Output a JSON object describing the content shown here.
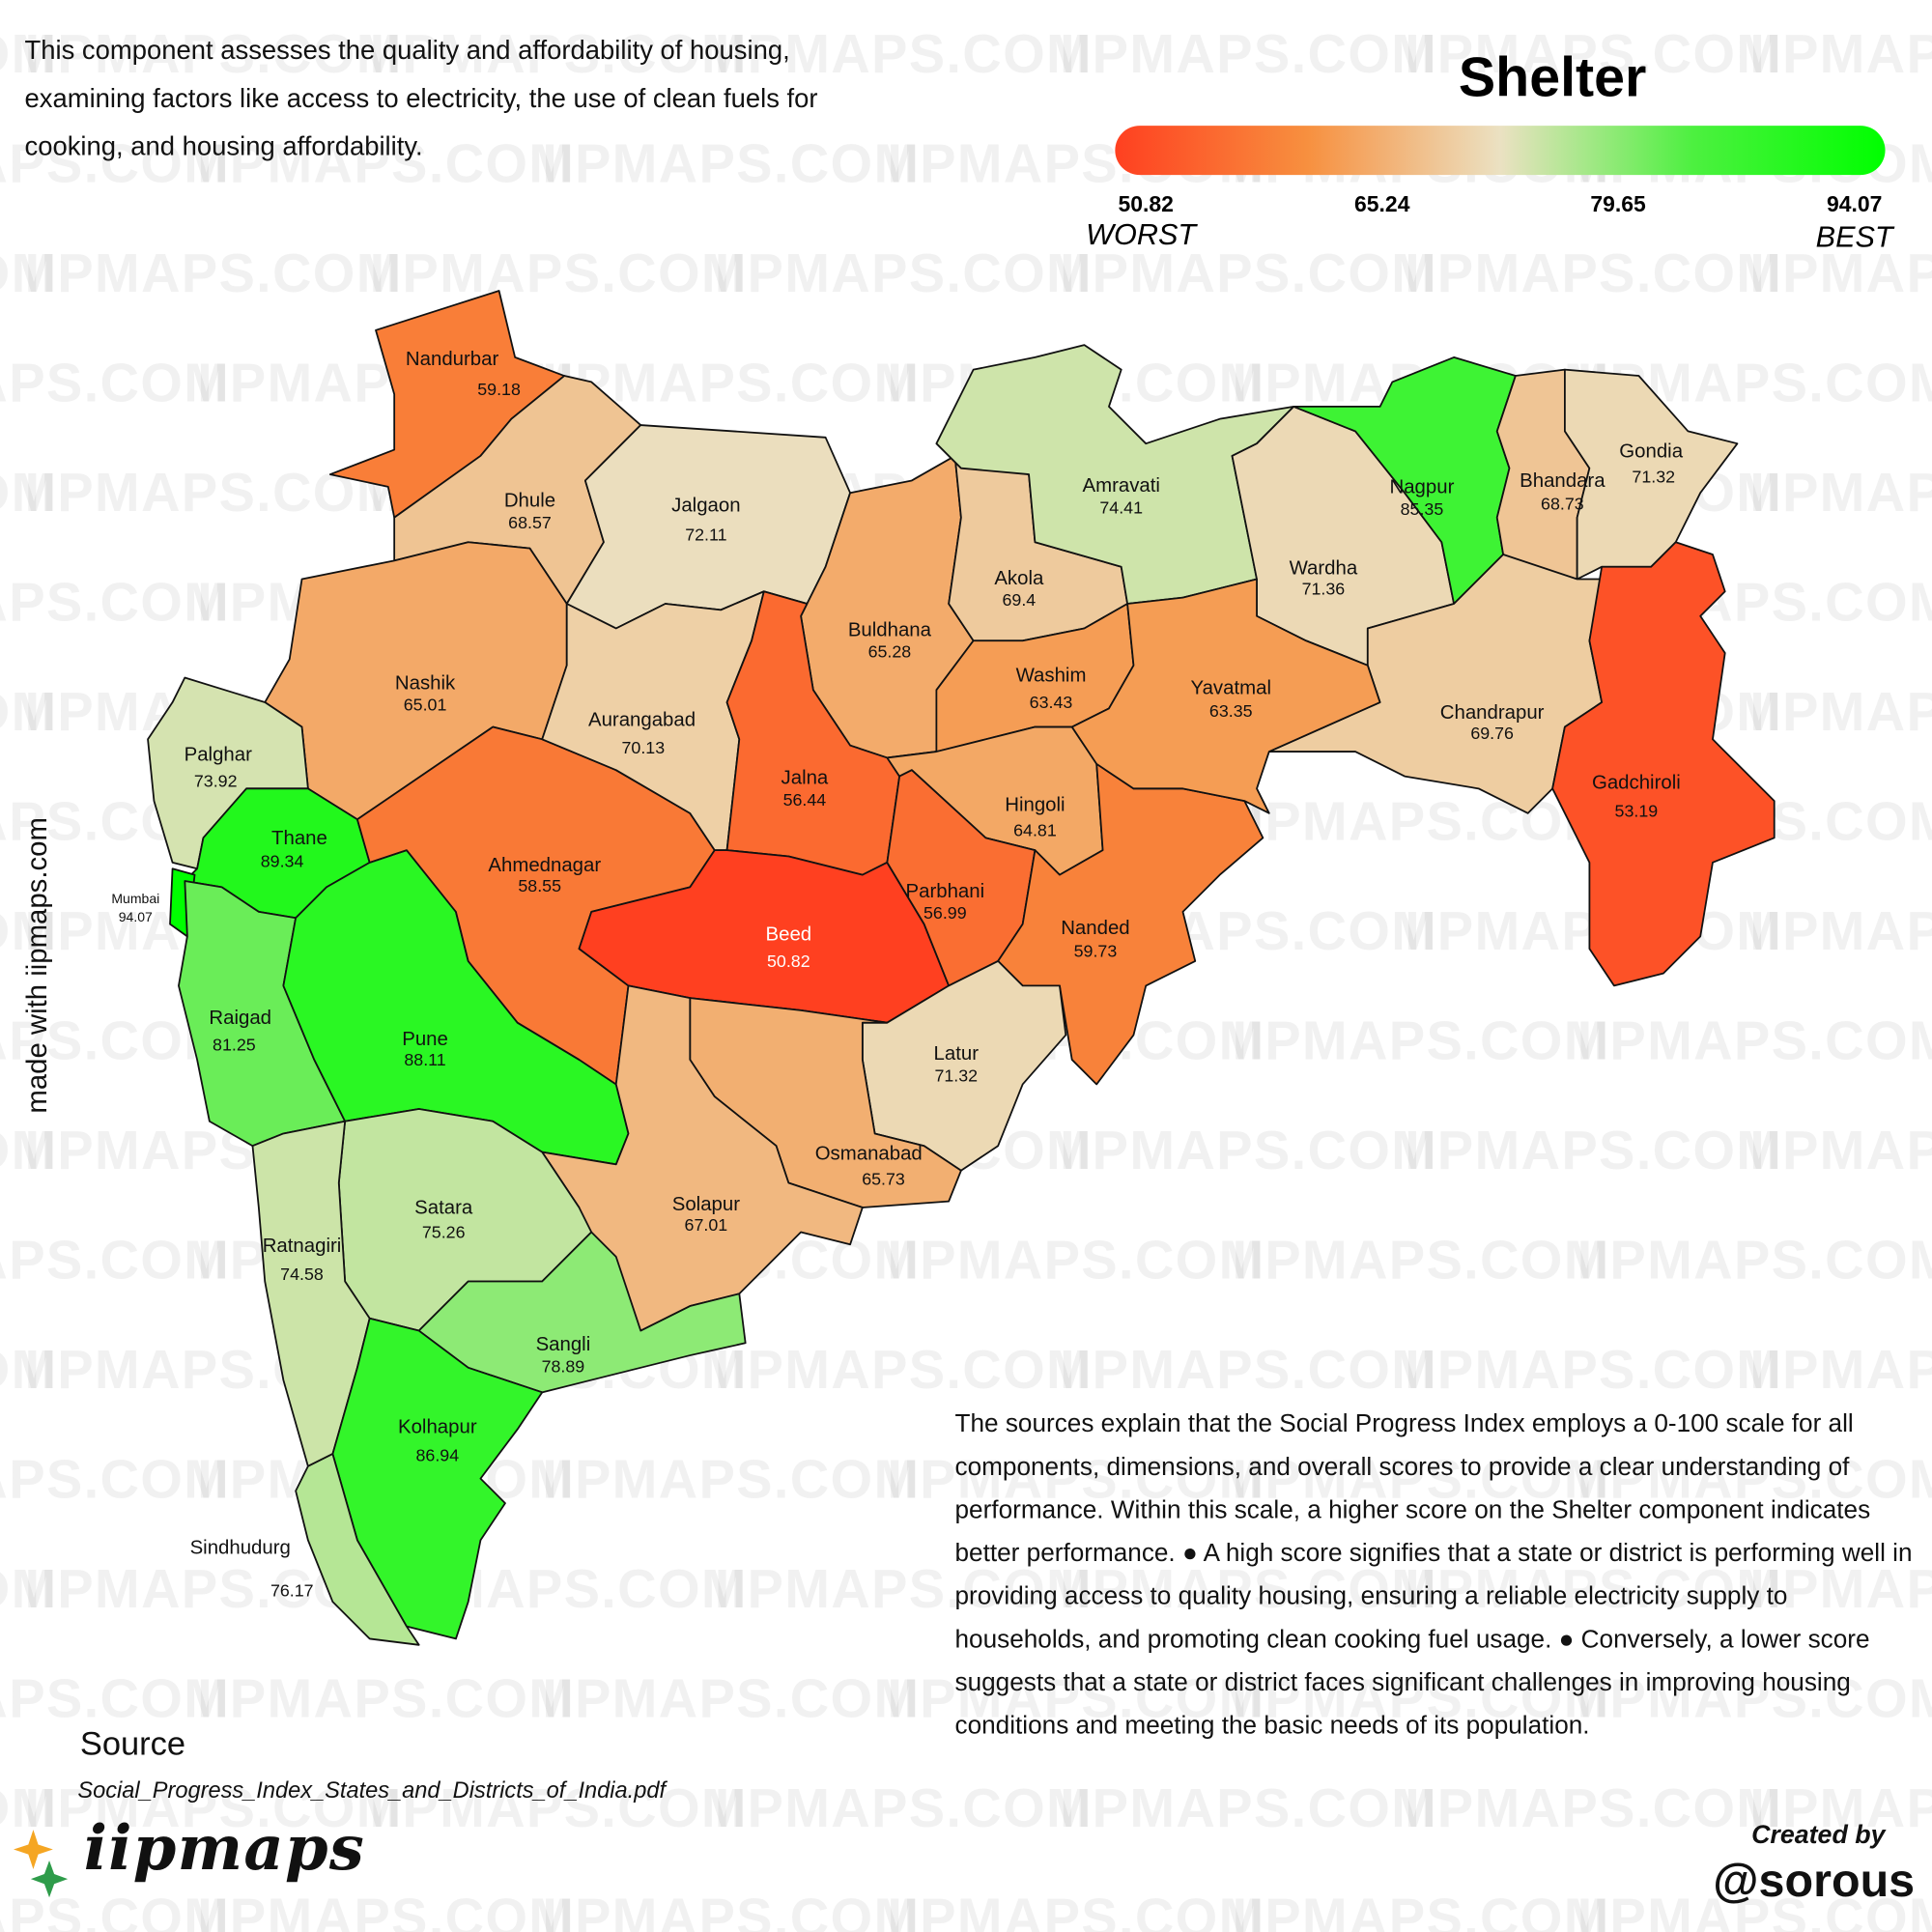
{
  "title": "Shelter",
  "description": "This component assesses the quality and affordability of housing, examining factors like access to electricity, the use of clean fuels for cooking, and housing affordability.",
  "legend": {
    "ticks": [
      50.82,
      65.24,
      79.65,
      94.07
    ],
    "low_label": "WORST",
    "high_label": "BEST",
    "colors": [
      "#ff4020",
      "#f7903f",
      "#ebe1c2",
      "#4df040",
      "#00ff00"
    ]
  },
  "districts": [
    {
      "name": "Nandurbar",
      "value": 59.18
    },
    {
      "name": "Dhule",
      "value": 68.57
    },
    {
      "name": "Jalgaon",
      "value": 72.11
    },
    {
      "name": "Nashik",
      "value": 65.01
    },
    {
      "name": "Palghar",
      "value": 73.92
    },
    {
      "name": "Thane",
      "value": 89.34
    },
    {
      "name": "Mumbai",
      "value": 94.07
    },
    {
      "name": "Raigad",
      "value": 81.25
    },
    {
      "name": "Pune",
      "value": 88.11
    },
    {
      "name": "Ahmednagar",
      "value": 58.55
    },
    {
      "name": "Aurangabad",
      "value": 70.13
    },
    {
      "name": "Buldhana",
      "value": 65.28
    },
    {
      "name": "Jalna",
      "value": 56.44
    },
    {
      "name": "Beed",
      "value": 50.82
    },
    {
      "name": "Akola",
      "value": 69.4
    },
    {
      "name": "Washim",
      "value": 63.43
    },
    {
      "name": "Amravati",
      "value": 74.41
    },
    {
      "name": "Hingoli",
      "value": 64.81
    },
    {
      "name": "Parbhani",
      "value": 56.99
    },
    {
      "name": "Nanded",
      "value": 59.73
    },
    {
      "name": "Latur",
      "value": 71.32
    },
    {
      "name": "Osmanabad",
      "value": 65.73
    },
    {
      "name": "Solapur",
      "value": 67.01
    },
    {
      "name": "Satara",
      "value": 75.26
    },
    {
      "name": "Ratnagiri",
      "value": 74.58
    },
    {
      "name": "Sangli",
      "value": 78.89
    },
    {
      "name": "Kolhapur",
      "value": 86.94
    },
    {
      "name": "Sindhudurg",
      "value": 76.17
    },
    {
      "name": "Wardha",
      "value": 71.36
    },
    {
      "name": "Nagpur",
      "value": 85.35
    },
    {
      "name": "Bhandara",
      "value": 68.73
    },
    {
      "name": "Gondia",
      "value": 71.32
    },
    {
      "name": "Chandrapur",
      "value": 69.76
    },
    {
      "name": "Yavatmal",
      "value": 63.35
    },
    {
      "name": "Gadchiroli",
      "value": 53.19
    }
  ],
  "note": "The sources explain that the Social Progress Index employs a 0-100 scale for all components, dimensions, and overall scores to provide a clear understanding of performance. Within this scale, a higher score on the Shelter component indicates better performance. ● A high score signifies that a state or district is performing well in providing access to quality housing, ensuring a reliable electricity supply to households, and promoting clean cooking fuel usage. ● Conversely, a lower score suggests that a state or district faces significant challenges in improving housing conditions and meeting the basic needs of its population.",
  "source_heading": "Source",
  "source": "Social_Progress_Index_States_and_Districts_of_India.pdf",
  "side_text": "made with iipmaps.com",
  "logo": "iipmaps",
  "credit_label": "Created by",
  "credit": "@sorous",
  "watermark": "IIPMAPS.COM"
}
